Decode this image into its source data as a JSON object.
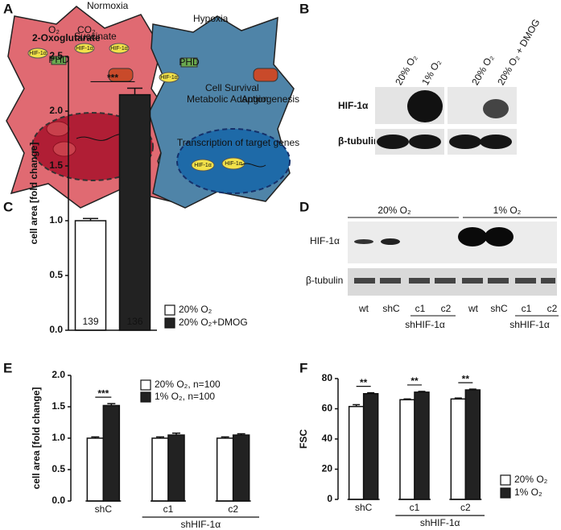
{
  "panels": {
    "A": {
      "letter": "A",
      "normoxia": {
        "title": "Normoxia",
        "o2": "O₂",
        "oxoglutarate": "2-Oxoglutarate",
        "co2": "CO₂",
        "succinate": "Succinate",
        "hif": "HIF-1α",
        "phd": "PHD"
      },
      "hypoxia": {
        "title": "Hypoxia",
        "phd": "PHD",
        "survival": "Cell Survival",
        "metabolic": "Metabolic Adaption",
        "angiogenesis": "Angiogenesis",
        "transcription": "Transcription of target genes",
        "hif": "HIF-1α"
      }
    },
    "B": {
      "letter": "B",
      "columns": [
        "20% O₂",
        "1% O₂",
        "20% O₂",
        "20% O₂ + DMOG"
      ],
      "rows": [
        "HIF-1α",
        "β-tubulin"
      ]
    },
    "D": {
      "letter": "D",
      "conditions": [
        "20% O₂",
        "1% O₂"
      ],
      "rows": [
        "HIF-1α",
        "β-tubulin"
      ],
      "lanes": [
        "wt",
        "shC",
        "c1",
        "c2",
        "wt",
        "shC",
        "c1",
        "c2"
      ],
      "group_labels": [
        "shHIF-1α",
        "shHIF-1α"
      ]
    }
  },
  "chart_data": [
    {
      "type": "bar",
      "panel": "C",
      "y_label": "cell area [fold change]",
      "ylim": [
        0,
        2.5
      ],
      "yticks": [
        {
          "value": 0,
          "label": "0.0"
        },
        0.5,
        {
          "value": 1,
          "label": "1.0"
        },
        1.5,
        {
          "value": 2,
          "label": "2.0"
        },
        2.5
      ],
      "series": [
        {
          "name": "20% O₂",
          "color": "#ffffff",
          "values": [
            1.0
          ],
          "errors": [
            0.02
          ],
          "bar_labels": [
            "139"
          ]
        },
        {
          "name": "20% O₂+DMOG",
          "color": "#222222",
          "values": [
            2.15
          ],
          "errors": [
            0.06
          ],
          "bar_labels": [
            "136"
          ]
        }
      ],
      "significance": [
        "***"
      ],
      "legend": "right"
    },
    {
      "type": "bar",
      "panel": "E",
      "y_label": "cell area [fold change]",
      "categories": [
        "shC",
        "c1",
        "c2"
      ],
      "group_label": "shHIF-1α",
      "ylim": [
        0,
        2
      ],
      "yticks": [
        {
          "value": 0,
          "label": "0.0"
        },
        0.5,
        {
          "value": 1,
          "label": "1.0"
        },
        1.5,
        {
          "value": 2,
          "label": "2.0"
        }
      ],
      "series": [
        {
          "name": "20% O₂, n=100",
          "color": "#ffffff",
          "values": [
            1.0,
            1.0,
            1.0
          ],
          "errors": [
            0.02,
            0.02,
            0.02
          ]
        },
        {
          "name": "1% O₂, n=100",
          "color": "#222222",
          "values": [
            1.52,
            1.05,
            1.05
          ],
          "errors": [
            0.03,
            0.03,
            0.02
          ]
        }
      ],
      "significance": [
        "***",
        null,
        null
      ],
      "legend": "top"
    },
    {
      "type": "bar",
      "panel": "F",
      "y_label": "FSC",
      "categories": [
        "shC",
        "c1",
        "c2"
      ],
      "group_label": "shHIF-1α",
      "ylim": [
        0,
        80
      ],
      "yticks": [
        0,
        20,
        40,
        60,
        80
      ],
      "series": [
        {
          "name": "20% O₂",
          "color": "#ffffff",
          "values": [
            61.5,
            66,
            66.5
          ],
          "errors": [
            1.2,
            0.5,
            0.6
          ]
        },
        {
          "name": "1% O₂",
          "color": "#222222",
          "values": [
            70,
            71,
            72.5
          ],
          "errors": [
            0.6,
            0.5,
            0.5
          ]
        }
      ],
      "significance": [
        "**",
        "**",
        "**"
      ],
      "legend": "lower right"
    }
  ]
}
